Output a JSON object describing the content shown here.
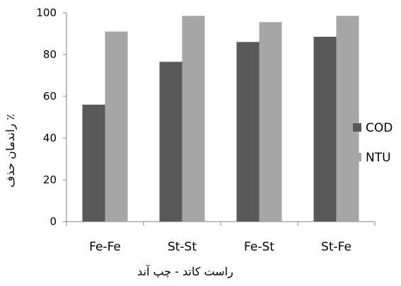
{
  "chart_data": {
    "type": "bar",
    "categories": [
      "Fe-Fe",
      "St-St",
      "Fe-St",
      "St-Fe"
    ],
    "series": [
      {
        "name": "COD",
        "values": [
          56,
          76.5,
          86,
          88.5
        ],
        "color": "#595959"
      },
      {
        "name": "NTU",
        "values": [
          91,
          98.5,
          95.5,
          98.5
        ],
        "color": "#a6a6a6"
      }
    ],
    "y_ticks": [
      0,
      20,
      40,
      60,
      80,
      100
    ],
    "ylim": [
      0,
      100
    ],
    "xlabel": "راست کاتد - چپ آند",
    "ylabel": "راندمان حذف ٪",
    "legend_position": "right",
    "grid": false
  }
}
